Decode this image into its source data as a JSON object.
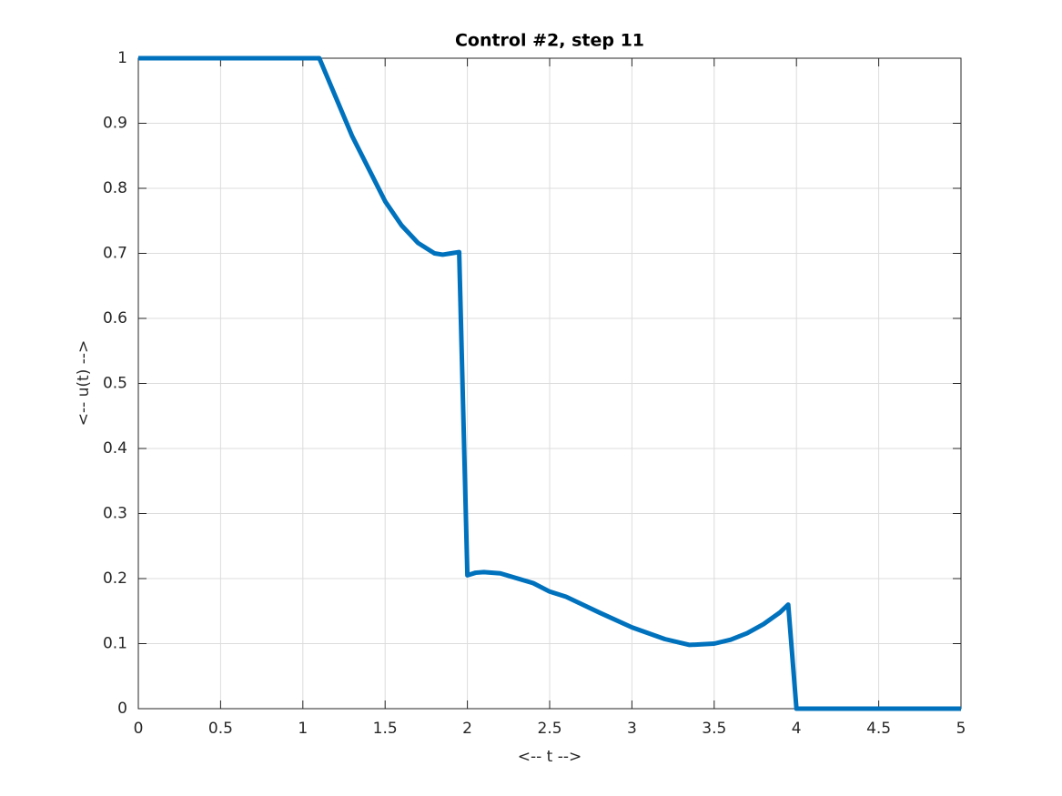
{
  "chart_data": {
    "type": "line",
    "title": "Control #2, step 11",
    "x_label": "<-- t -->",
    "y_label": "<-- u(t) -->",
    "x": [
      0,
      1.1,
      1.15,
      1.2,
      1.3,
      1.4,
      1.5,
      1.6,
      1.7,
      1.8,
      1.85,
      1.9,
      1.95,
      2.0,
      2.05,
      2.1,
      2.2,
      2.4,
      2.5,
      2.6,
      2.8,
      3.0,
      3.2,
      3.35,
      3.5,
      3.6,
      3.7,
      3.8,
      3.9,
      3.95,
      4.0,
      5
    ],
    "series": [
      {
        "name": "u",
        "color": "#0072bd",
        "values": [
          1,
          1,
          0.97,
          0.94,
          0.88,
          0.83,
          0.78,
          0.743,
          0.716,
          0.7,
          0.698,
          0.7,
          0.702,
          0.205,
          0.209,
          0.21,
          0.208,
          0.193,
          0.18,
          0.172,
          0.148,
          0.125,
          0.107,
          0.098,
          0.1,
          0.106,
          0.116,
          0.13,
          0.148,
          0.16,
          0,
          0
        ]
      }
    ],
    "xlim": [
      0,
      5
    ],
    "ylim": [
      0,
      1
    ],
    "xticks": [
      0,
      0.5,
      1,
      1.5,
      2,
      2.5,
      3,
      3.5,
      4,
      4.5,
      5
    ],
    "yticks": [
      0,
      0.1,
      0.2,
      0.3,
      0.4,
      0.5,
      0.6,
      0.7,
      0.8,
      0.9,
      1
    ],
    "grid": true
  }
}
